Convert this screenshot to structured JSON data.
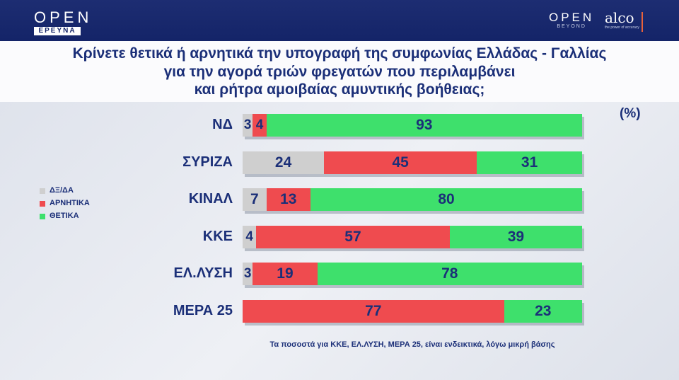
{
  "header": {
    "brand_left_word": "OPEN",
    "brand_left_sub": "ΕΡΕΥΝΑ",
    "brand_right_word": "OPEN",
    "brand_right_sub": "BEYOND",
    "partner_word": "alco",
    "partner_sub": "the power of accuracy"
  },
  "chart_data": {
    "type": "bar",
    "orientation": "horizontal",
    "stacked": true,
    "title_lines": [
      "Κρίνετε θετικά ή αρνητικά την υπογραφή της συμφωνίας Ελλάδας - Γαλλίας",
      "για την αγορά τριών φρεγατών που περιλαμβάνει",
      "και ρήτρα αμοιβαίας αμυντικής βοήθειας;"
    ],
    "unit_label": "(%)",
    "categories": [
      "ΝΔ",
      "ΣΥΡΙΖΑ",
      "ΚΙΝΑΛ",
      "ΚΚΕ",
      "ΕΛ.ΛΥΣΗ",
      "ΜΕΡΑ 25"
    ],
    "series": [
      {
        "name": "ΔΞ/ΔΑ",
        "color": "#cfcfcf",
        "values": [
          3,
          24,
          7,
          4,
          3,
          0
        ]
      },
      {
        "name": "ΑΡΝΗΤΙΚΑ",
        "color": "#ef4b4f",
        "values": [
          4,
          45,
          13,
          57,
          19,
          77
        ]
      },
      {
        "name": "ΘΕΤΙΚΑ",
        "color": "#3ee06c",
        "values": [
          93,
          31,
          80,
          39,
          78,
          23
        ]
      }
    ],
    "legend_position": "left",
    "footnote": "Τα ποσοστά για ΚΚΕ, ΕΛ.ΛΥΣΗ, ΜΕΡΑ 25, είναι ενδεικτικά, λόγω μικρή βάσης"
  }
}
